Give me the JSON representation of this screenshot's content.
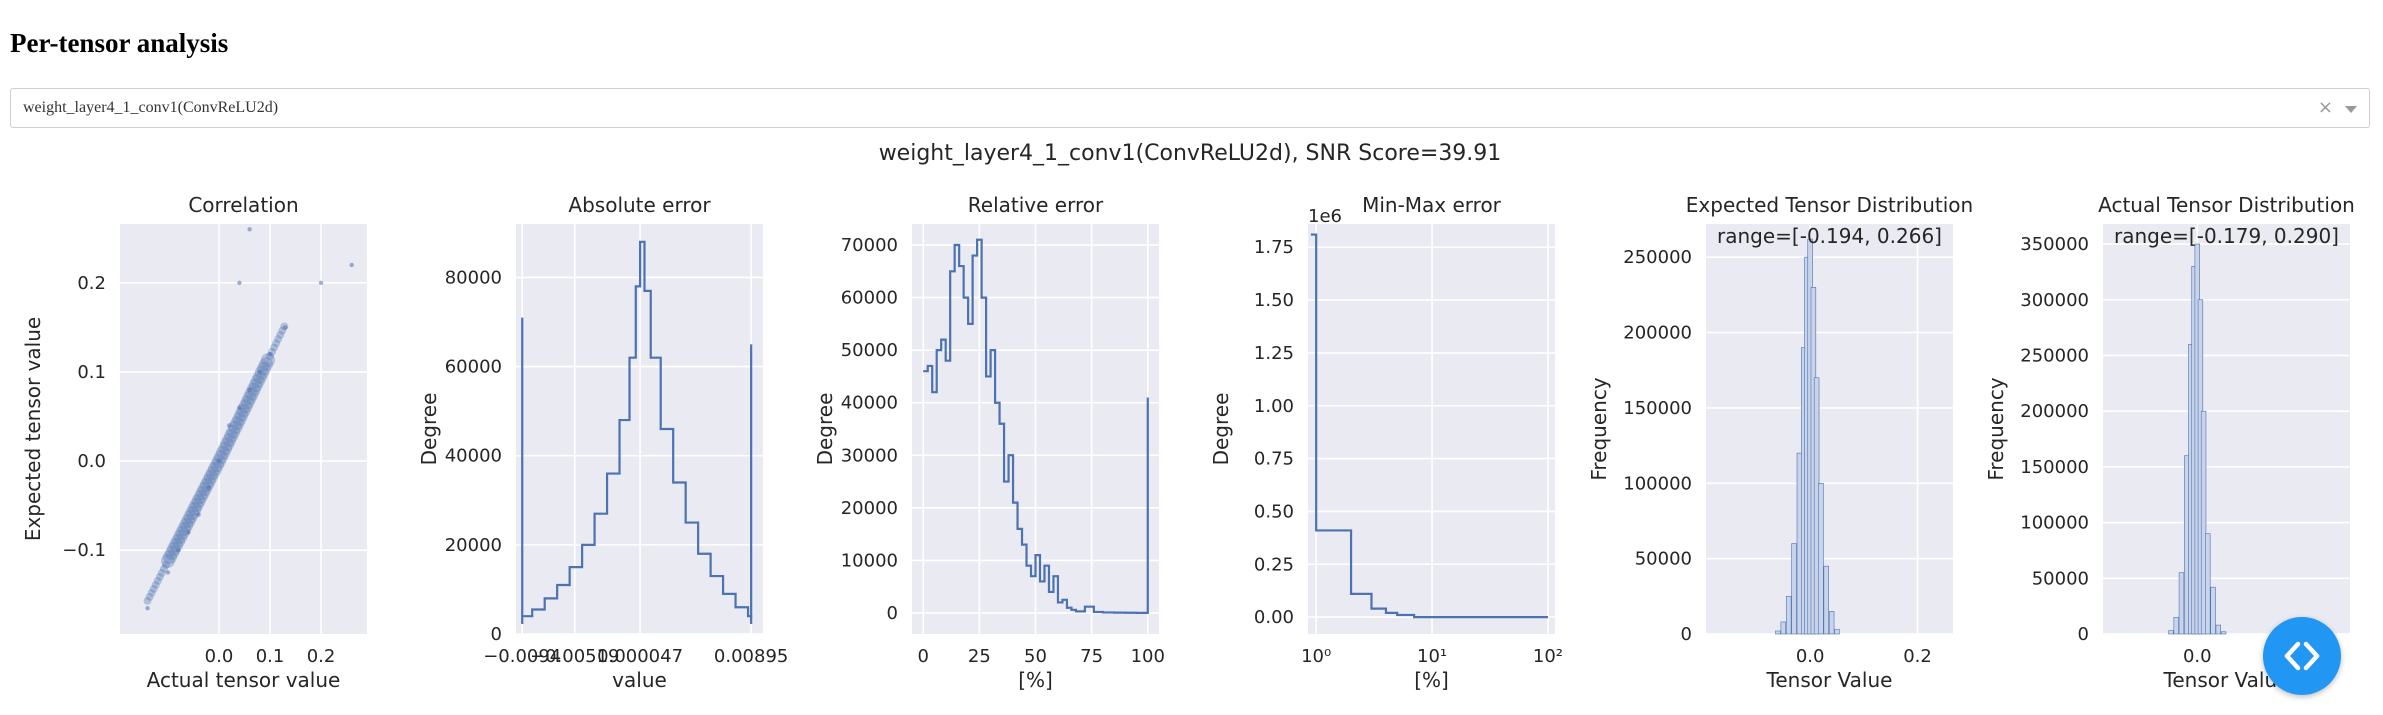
{
  "page": {
    "heading": "Per-tensor analysis",
    "selector_value": "weight_layer4_1_conv1(ConvReLU2d)",
    "clear_glyph": "×",
    "suptitle": "weight_layer4_1_conv1(ConvReLU2d), SNR Score=39.91"
  },
  "colors": {
    "line": "#4c72b0",
    "panel_bg": "#eaeaf2",
    "grid": "#ffffff",
    "fab": "#2196f3"
  },
  "icons": {
    "clear": "close-icon",
    "dropdown": "chevron-down-icon",
    "fab": "code-icon"
  },
  "chart_data": [
    {
      "type": "scatter",
      "title": "Correlation",
      "xlabel": "Actual tensor value",
      "ylabel": "Expected tensor value",
      "xlim": [
        -0.194,
        0.29
      ],
      "ylim": [
        -0.194,
        0.266
      ],
      "xticks": [
        0.0,
        0.1,
        0.2
      ],
      "xticklabels": [
        "0.0",
        "0.1",
        "0.2"
      ],
      "yticks": [
        -0.1,
        0.0,
        0.1,
        0.2
      ],
      "yticklabels": [
        "−0.1",
        "0.0",
        "0.1",
        "0.2"
      ],
      "x": [
        -0.14,
        -0.1,
        -0.08,
        -0.06,
        -0.04,
        -0.02,
        0.0,
        0.02,
        0.04,
        0.06,
        0.08,
        0.1,
        0.13,
        0.2,
        0.26,
        0.06,
        0.04
      ],
      "y": [
        -0.165,
        -0.125,
        -0.1,
        -0.08,
        -0.06,
        -0.03,
        0.0,
        0.04,
        0.06,
        0.08,
        0.1,
        0.12,
        0.15,
        0.2,
        0.22,
        0.26,
        0.2
      ]
    },
    {
      "type": "line",
      "title": "Absolute error",
      "xlabel": "value",
      "ylabel": "Degree",
      "xlim": [
        -0.0099,
        0.0099
      ],
      "ylim": [
        0,
        92000
      ],
      "xticks": [
        -0.0094,
        -0.00519,
        4.7e-05,
        0.00895
      ],
      "xticklabels": [
        "−0.0094",
        "−0.00519",
        "0.000047",
        "0.00895"
      ],
      "yticks": [
        0,
        20000,
        40000,
        60000,
        80000
      ],
      "yticklabels": [
        "0",
        "20000",
        "40000",
        "60000",
        "80000"
      ],
      "x": [
        -0.0094,
        -0.0086,
        -0.0076,
        -0.0066,
        -0.0056,
        -0.0046,
        -0.0036,
        -0.0026,
        -0.0016,
        -0.0008,
        -0.0003,
        4.7e-05,
        0.0004,
        0.0009,
        0.0017,
        0.0027,
        0.0037,
        0.0047,
        0.0057,
        0.0067,
        0.0077,
        0.0087,
        0.00895
      ],
      "y": [
        4000,
        5500,
        8000,
        11000,
        15000,
        20000,
        27000,
        36000,
        48000,
        62000,
        78000,
        88000,
        77000,
        62000,
        46000,
        34000,
        25000,
        18000,
        13000,
        9000,
        6000,
        4000,
        3500
      ],
      "spikes": [
        [
          -0.0094,
          71000
        ],
        [
          0.00895,
          65000
        ]
      ]
    },
    {
      "type": "line",
      "title": "Relative error",
      "xlabel": "[%]",
      "ylabel": "Degree",
      "xlim": [
        -5,
        105
      ],
      "ylim": [
        -4000,
        74000
      ],
      "xticks": [
        0,
        25,
        50,
        75,
        100
      ],
      "xticklabels": [
        "0",
        "25",
        "50",
        "75",
        "100"
      ],
      "yticks": [
        0,
        10000,
        20000,
        30000,
        40000,
        50000,
        60000,
        70000
      ],
      "yticklabels": [
        "0",
        "10000",
        "20000",
        "30000",
        "40000",
        "50000",
        "60000",
        "70000"
      ],
      "x": [
        0,
        2,
        4,
        6,
        8,
        10,
        12,
        14,
        16,
        18,
        20,
        22,
        24,
        26,
        28,
        30,
        32,
        34,
        36,
        38,
        40,
        42,
        44,
        46,
        48,
        50,
        52,
        54,
        56,
        58,
        60,
        62,
        64,
        66,
        68,
        72,
        76,
        80,
        85,
        90,
        95,
        99.5,
        100
      ],
      "y": [
        46000,
        47000,
        42000,
        50000,
        52000,
        48000,
        65000,
        70000,
        66000,
        60000,
        55000,
        68000,
        71000,
        60000,
        45000,
        50000,
        40000,
        36000,
        25000,
        30000,
        21000,
        16000,
        13000,
        9000,
        7000,
        11000,
        6000,
        9000,
        4000,
        7000,
        2000,
        2500,
        1000,
        600,
        300,
        1200,
        200,
        100,
        60,
        40,
        20,
        10,
        41000
      ]
    },
    {
      "type": "line",
      "title": "Min-Max error",
      "xlabel": "[%]",
      "ylabel": "Degree",
      "yscale_label": "1e6",
      "xscale": "log",
      "xlim": [
        0.85,
        115
      ],
      "ylim": [
        -0.08,
        1.86
      ],
      "xticks": [
        1,
        10,
        100
      ],
      "xticklabels": [
        "10⁰",
        "10¹",
        "10²"
      ],
      "yticks": [
        0,
        0.25,
        0.5,
        0.75,
        1.0,
        1.25,
        1.5,
        1.75
      ],
      "yticklabels": [
        "0.00",
        "0.25",
        "0.50",
        "0.75",
        "1.00",
        "1.25",
        "1.50",
        "1.75"
      ],
      "x": [
        0.9,
        1.0,
        1.0,
        2.0,
        2.0,
        3.0,
        3.0,
        4.0,
        5.0,
        7.0,
        100
      ],
      "y": [
        1.81,
        1.81,
        0.41,
        0.41,
        0.11,
        0.11,
        0.04,
        0.02,
        0.01,
        0.0,
        0.0
      ]
    },
    {
      "type": "bar",
      "title": "Expected Tensor Distribution",
      "annotation": "range=[-0.194, 0.266]",
      "xlabel": "Tensor Value",
      "ylabel": "Frequency",
      "xlim": [
        -0.194,
        0.266
      ],
      "ylim": [
        0,
        272000
      ],
      "xticks": [
        0.0,
        0.2
      ],
      "xticklabels": [
        "0.0",
        "0.2"
      ],
      "yticks": [
        0,
        50000,
        100000,
        150000,
        200000,
        250000
      ],
      "yticklabels": [
        "0",
        "50000",
        "100000",
        "150000",
        "200000",
        "250000"
      ],
      "bins": [
        -0.06,
        -0.05,
        -0.04,
        -0.03,
        -0.02,
        -0.012,
        -0.006,
        0.0,
        0.006,
        0.012,
        0.02,
        0.03,
        0.04,
        0.05
      ],
      "values": [
        2000,
        8000,
        25000,
        60000,
        120000,
        190000,
        250000,
        262000,
        230000,
        170000,
        100000,
        45000,
        15000,
        3000
      ]
    },
    {
      "type": "bar",
      "title": "Actual Tensor Distribution",
      "annotation": "range=[-0.179, 0.290]",
      "xlabel": "Tensor Value",
      "ylabel": "Frequency",
      "xlim": [
        -0.179,
        0.29
      ],
      "ylim": [
        0,
        368000
      ],
      "xticks": [
        0.0
      ],
      "xticklabels": [
        "0.0"
      ],
      "yticks": [
        0,
        50000,
        100000,
        150000,
        200000,
        250000,
        300000,
        350000
      ],
      "yticklabels": [
        "0",
        "50000",
        "100000",
        "150000",
        "200000",
        "250000",
        "300000",
        "350000"
      ],
      "bins": [
        -0.05,
        -0.04,
        -0.03,
        -0.02,
        -0.012,
        -0.006,
        0.0,
        0.006,
        0.012,
        0.02,
        0.03,
        0.04,
        0.05
      ],
      "values": [
        3000,
        15000,
        55000,
        160000,
        260000,
        330000,
        350000,
        300000,
        200000,
        90000,
        42000,
        8000,
        2000
      ]
    }
  ]
}
